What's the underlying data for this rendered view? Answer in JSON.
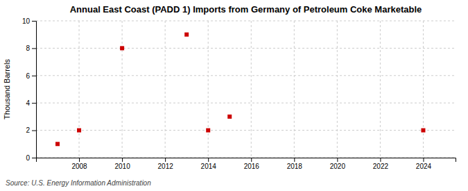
{
  "chart_data": {
    "type": "scatter",
    "title": "Annual East Coast (PADD 1) Imports from Germany of Petroleum Coke Marketable",
    "ylabel": "Thousand Barrels",
    "source": "Source: U.S. Energy Information Administration",
    "x": [
      2007,
      2008,
      2010,
      2013,
      2014,
      2015,
      2024
    ],
    "values": [
      1,
      2,
      8,
      9,
      2,
      3,
      2
    ],
    "color": "#cc0000",
    "marker": "square",
    "xlim": [
      2006.0,
      2025.5
    ],
    "ylim": [
      0,
      10
    ],
    "xticks": [
      2008,
      2010,
      2012,
      2014,
      2016,
      2018,
      2020,
      2022,
      2024
    ],
    "yticks": [
      0,
      2,
      4,
      6,
      8,
      10
    ],
    "grid": true
  }
}
